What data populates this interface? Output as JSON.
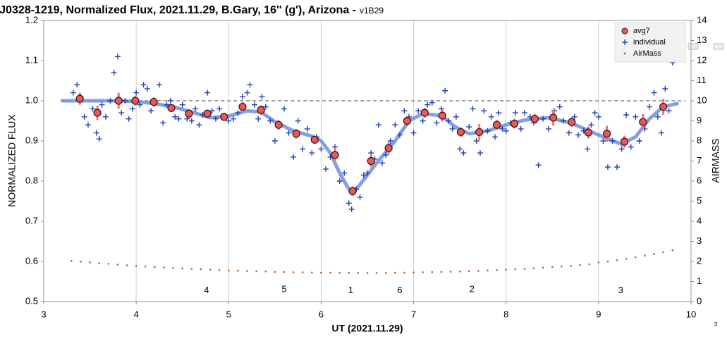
{
  "chart_data": {
    "type": "scatter",
    "title": "J0328-1219, Normalized Flux, 2021.11.29, B.Gary, 16'' (g'), Arizona -",
    "version": "v1B29",
    "xlabel": "UT (2021.11.29)",
    "ylabel": "NORMALIZED FLUX",
    "y2label": "AIRMASS",
    "corner_label": "3",
    "xlim": [
      3,
      10
    ],
    "xticks": [
      3,
      4,
      5,
      6,
      7,
      8,
      9,
      10
    ],
    "ylim": [
      0.5,
      1.2
    ],
    "yticks": [
      0.5,
      0.6,
      0.7,
      0.8,
      0.9,
      {
        "value": 1,
        "label": "1.0"
      },
      1.1,
      1.2
    ],
    "y2lim": [
      0,
      14
    ],
    "y2ticks": [
      0,
      1,
      2,
      3,
      4,
      5,
      6,
      7,
      8,
      9,
      10,
      11,
      12,
      13,
      14
    ],
    "grid": "x",
    "legend": "upper right",
    "reference_line": {
      "value": 1,
      "color": "#808080"
    },
    "series": [
      {
        "type": "line",
        "color": "#6d8fdc",
        "x": [
          3.2,
          3.5,
          3.8,
          4.0,
          4.2,
          4.4,
          4.6,
          4.8,
          5.0,
          5.2,
          5.35,
          5.5,
          5.7,
          5.9,
          6.0,
          6.1,
          6.2,
          6.3,
          6.35,
          6.45,
          6.6,
          6.8,
          6.95,
          7.1,
          7.3,
          7.45,
          7.6,
          7.8,
          8.0,
          8.2,
          8.45,
          8.7,
          8.9,
          9.1,
          9.25,
          9.4,
          9.55,
          9.7,
          9.85
        ],
        "values": [
          1.0,
          1.0,
          1.0,
          0.998,
          0.993,
          0.985,
          0.972,
          0.958,
          0.962,
          0.975,
          0.972,
          0.948,
          0.925,
          0.912,
          0.9,
          0.87,
          0.82,
          0.78,
          0.772,
          0.8,
          0.845,
          0.9,
          0.95,
          0.968,
          0.963,
          0.935,
          0.918,
          0.925,
          0.94,
          0.952,
          0.958,
          0.945,
          0.925,
          0.905,
          0.892,
          0.91,
          0.955,
          0.985,
          0.993
        ]
      },
      {
        "name": "individual",
        "marker": "plus",
        "color": "#1f3fb4",
        "x": [
          3.32,
          3.36,
          3.4,
          3.44,
          3.48,
          3.53,
          3.57,
          3.6,
          3.63,
          3.67,
          3.72,
          3.76,
          3.8,
          3.84,
          3.88,
          3.92,
          3.96,
          4.0,
          4.04,
          4.08,
          4.12,
          4.16,
          4.2,
          4.25,
          4.29,
          4.33,
          4.37,
          4.42,
          4.46,
          4.5,
          4.55,
          4.6,
          4.64,
          4.68,
          4.72,
          4.77,
          4.82,
          4.86,
          4.9,
          4.95,
          5.0,
          5.05,
          5.1,
          5.15,
          5.2,
          5.23,
          5.28,
          5.32,
          5.36,
          5.4,
          5.45,
          5.5,
          5.55,
          5.6,
          5.65,
          5.7,
          5.75,
          5.8,
          5.85,
          5.9,
          5.95,
          6.0,
          6.05,
          6.1,
          6.15,
          6.2,
          6.25,
          6.3,
          6.33,
          6.38,
          6.42,
          6.46,
          6.5,
          6.54,
          6.58,
          6.62,
          6.66,
          6.7,
          6.75,
          6.8,
          6.85,
          6.9,
          6.95,
          7.0,
          7.05,
          7.1,
          7.15,
          7.2,
          7.25,
          7.3,
          7.34,
          7.38,
          7.42,
          7.46,
          7.5,
          7.54,
          7.6,
          7.64,
          7.68,
          7.72,
          7.76,
          7.8,
          7.84,
          7.88,
          7.92,
          7.96,
          8.0,
          8.05,
          8.1,
          8.16,
          8.2,
          8.26,
          8.3,
          8.35,
          8.4,
          8.46,
          8.52,
          8.58,
          8.62,
          8.68,
          8.74,
          8.78,
          8.84,
          8.88,
          8.92,
          8.96,
          9.0,
          9.05,
          9.1,
          9.15,
          9.2,
          9.25,
          9.3,
          9.35,
          9.4,
          9.44,
          9.5,
          9.55,
          9.6,
          9.64,
          9.68,
          9.72,
          9.76,
          9.8
        ],
        "values": [
          1.02,
          1.04,
          1.01,
          0.96,
          0.94,
          0.98,
          0.92,
          0.905,
          0.99,
          0.96,
          1.0,
          1.07,
          1.11,
          0.97,
          1.0,
          0.955,
          0.98,
          1.02,
          0.99,
          1.04,
          1.03,
          0.975,
          1.0,
          1.04,
          0.945,
          0.99,
          1.0,
          0.96,
          0.955,
          0.99,
          0.955,
          0.95,
          0.98,
          0.94,
          0.965,
          1.02,
          0.975,
          0.955,
          0.98,
          0.96,
          0.95,
          0.955,
          0.97,
          1.01,
          1.02,
          1.04,
          0.99,
          0.955,
          1.01,
          0.985,
          0.95,
          0.9,
          0.94,
          0.98,
          0.92,
          0.86,
          0.95,
          0.88,
          0.93,
          0.87,
          0.91,
          0.88,
          0.83,
          0.86,
          0.885,
          0.8,
          0.82,
          0.745,
          0.73,
          0.78,
          0.76,
          0.815,
          0.82,
          0.87,
          0.855,
          0.94,
          0.845,
          0.865,
          0.9,
          0.94,
          0.915,
          0.975,
          0.96,
          0.92,
          0.975,
          0.95,
          0.99,
          0.995,
          0.945,
          0.98,
          1.025,
          0.95,
          0.93,
          0.96,
          0.88,
          0.87,
          0.935,
          0.98,
          0.9,
          0.87,
          0.975,
          0.925,
          0.96,
          0.91,
          0.97,
          0.93,
          0.925,
          0.945,
          0.97,
          0.93,
          0.97,
          0.96,
          0.945,
          0.84,
          0.955,
          0.93,
          0.975,
          0.985,
          0.95,
          0.92,
          0.96,
          0.915,
          0.925,
          0.88,
          0.94,
          0.97,
          0.96,
          0.9,
          0.835,
          0.9,
          0.835,
          0.88,
          0.965,
          0.885,
          0.96,
          0.9,
          0.93,
          0.985,
          1.02,
          0.96,
          0.92,
          1.03,
          0.975,
          1.095
        ]
      },
      {
        "name": "avg7",
        "marker": "circle",
        "color": "#e8585a",
        "error_color": "#ea7878",
        "x": [
          3.39,
          3.58,
          3.81,
          3.99,
          4.19,
          4.38,
          4.57,
          4.77,
          4.95,
          5.15,
          5.35,
          5.54,
          5.73,
          5.93,
          6.15,
          6.34,
          6.54,
          6.73,
          6.93,
          7.12,
          7.31,
          7.51,
          7.71,
          7.9,
          8.09,
          8.31,
          8.51,
          8.71,
          8.89,
          9.09,
          9.28,
          9.48,
          9.7
        ],
        "values": [
          1.005,
          0.97,
          1.0,
          1.0,
          0.997,
          0.982,
          0.968,
          0.968,
          0.96,
          0.985,
          0.977,
          0.94,
          0.918,
          0.903,
          0.865,
          0.775,
          0.85,
          0.882,
          0.95,
          0.97,
          0.963,
          0.922,
          0.922,
          0.94,
          0.943,
          0.955,
          0.958,
          0.947,
          0.921,
          0.918,
          0.898,
          0.947,
          0.985
        ],
        "errors": [
          0.015,
          0.018,
          0.02,
          0.012,
          0.012,
          0.01,
          0.012,
          0.01,
          0.01,
          0.012,
          0.012,
          0.012,
          0.012,
          0.01,
          0.018,
          0.012,
          0.015,
          0.015,
          0.012,
          0.012,
          0.015,
          0.012,
          0.02,
          0.012,
          0.012,
          0.012,
          0.02,
          0.012,
          0.015,
          0.02,
          0.015,
          0.02,
          0.02
        ]
      },
      {
        "name": "AirMass",
        "marker": "dot",
        "color": "#b0642a",
        "axis": "y2",
        "x": [
          3.3,
          3.4,
          3.5,
          3.6,
          3.7,
          3.8,
          3.9,
          4.0,
          4.1,
          4.2,
          4.3,
          4.4,
          4.5,
          4.6,
          4.7,
          4.8,
          4.9,
          5.0,
          5.1,
          5.2,
          5.3,
          5.4,
          5.5,
          5.6,
          5.7,
          5.8,
          5.9,
          6.0,
          6.1,
          6.2,
          6.3,
          6.4,
          6.5,
          6.6,
          6.7,
          6.8,
          6.9,
          7.0,
          7.1,
          7.2,
          7.3,
          7.4,
          7.5,
          7.6,
          7.7,
          7.8,
          7.9,
          8.0,
          8.1,
          8.2,
          8.3,
          8.4,
          8.5,
          8.6,
          8.7,
          8.8,
          8.9,
          9.0,
          9.1,
          9.2,
          9.3,
          9.4,
          9.5,
          9.6,
          9.7,
          9.8
        ],
        "values": [
          2.03,
          1.99,
          1.95,
          1.91,
          1.88,
          1.84,
          1.81,
          1.78,
          1.75,
          1.72,
          1.7,
          1.67,
          1.65,
          1.63,
          1.61,
          1.59,
          1.57,
          1.55,
          1.54,
          1.52,
          1.51,
          1.5,
          1.48,
          1.47,
          1.46,
          1.46,
          1.45,
          1.44,
          1.44,
          1.43,
          1.43,
          1.43,
          1.43,
          1.43,
          1.43,
          1.44,
          1.44,
          1.45,
          1.46,
          1.47,
          1.48,
          1.49,
          1.5,
          1.52,
          1.53,
          1.55,
          1.57,
          1.59,
          1.61,
          1.63,
          1.66,
          1.69,
          1.72,
          1.75,
          1.78,
          1.82,
          1.86,
          1.95,
          2.0,
          2.06,
          2.13,
          2.21,
          2.29,
          2.37,
          2.46,
          2.56
        ]
      }
    ],
    "annotations": [
      {
        "text": "4",
        "x": 4.76,
        "y2": 0.55
      },
      {
        "text": "5",
        "x": 5.6,
        "y2": 0.6
      },
      {
        "text": "1",
        "x": 6.32,
        "y2": 0.55
      },
      {
        "text": "6",
        "x": 6.85,
        "y2": 0.55
      },
      {
        "text": "2",
        "x": 7.63,
        "y2": 0.6
      },
      {
        "text": "3",
        "x": 9.24,
        "y2": 0.55
      }
    ]
  }
}
